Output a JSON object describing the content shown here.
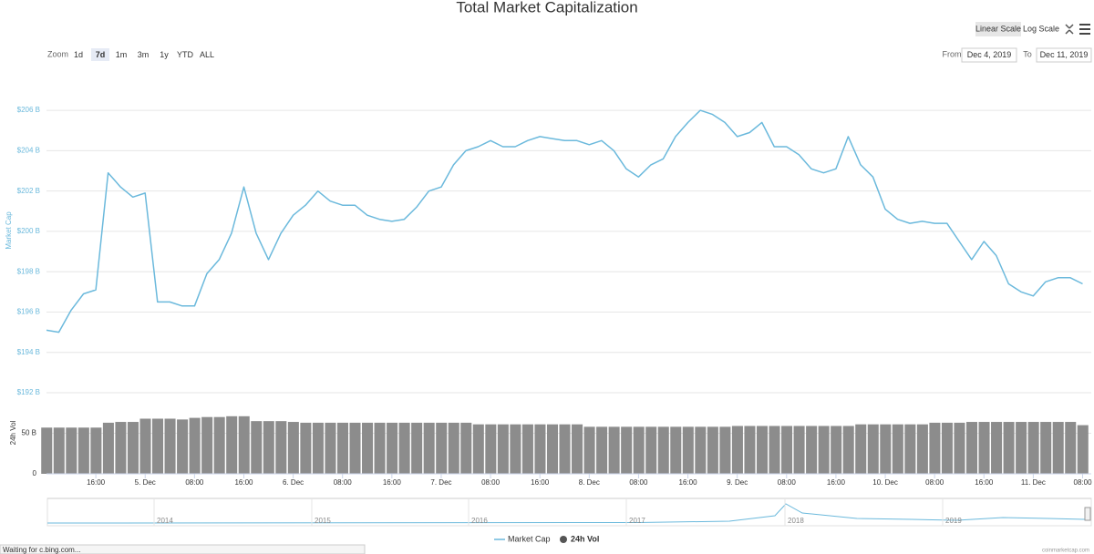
{
  "chart_data": [
    {
      "type": "line",
      "title": "Total Market Capitalization",
      "y_label": "Market Cap",
      "categories": [
        null,
        null,
        null,
        null,
        "16:00",
        null,
        null,
        null,
        "5. Dec",
        null,
        null,
        null,
        "08:00",
        null,
        null,
        null,
        "16:00",
        null,
        null,
        null,
        "6. Dec",
        null,
        null,
        null,
        "08:00",
        null,
        null,
        null,
        "16:00",
        null,
        null,
        null,
        "7. Dec",
        null,
        null,
        null,
        "08:00",
        null,
        null,
        null,
        "16:00",
        null,
        null,
        null,
        "8. Dec",
        null,
        null,
        null,
        "08:00",
        null,
        null,
        null,
        "16:00",
        null,
        null,
        null,
        "9. Dec",
        null,
        null,
        null,
        "08:00",
        null,
        null,
        null,
        "16:00",
        null,
        null,
        null,
        "10. Dec",
        null,
        null,
        null,
        "08:00",
        null,
        null,
        null,
        "16:00",
        null,
        null,
        null,
        "11. Dec",
        null,
        null,
        null,
        "08:00"
      ],
      "series": [
        {
          "name": "Market Cap",
          "color": "#6bb9dc",
          "values": [
            195.1,
            195.0,
            196.1,
            196.9,
            197.1,
            202.9,
            202.2,
            201.7,
            201.9,
            196.5,
            196.5,
            196.3,
            196.3,
            197.9,
            198.6,
            199.9,
            202.2,
            199.9,
            198.6,
            199.9,
            200.8,
            201.3,
            202.0,
            201.5,
            201.3,
            201.3,
            200.8,
            200.6,
            200.5,
            200.6,
            201.2,
            202.0,
            202.2,
            203.3,
            204.0,
            204.2,
            204.5,
            204.2,
            204.2,
            204.5,
            204.7,
            204.6,
            204.5,
            204.5,
            204.3,
            204.5,
            204.0,
            203.1,
            202.7,
            203.3,
            203.6,
            204.7,
            205.4,
            206.0,
            205.8,
            205.4,
            204.7,
            204.9,
            205.4,
            204.2,
            204.2,
            203.8,
            203.1,
            202.9,
            203.1,
            204.7,
            203.3,
            202.7,
            201.1,
            200.6,
            200.4,
            200.5,
            200.4,
            200.4,
            199.5,
            198.6,
            199.5,
            198.8,
            197.4,
            197.0,
            196.8,
            197.5,
            197.7,
            197.7,
            197.4
          ]
        }
      ],
      "ylim": [
        192,
        207
      ],
      "yticks": [
        {
          "value": 192,
          "label": "$192 B"
        },
        {
          "value": 194,
          "label": "$194 B"
        },
        {
          "value": 196,
          "label": "$196 B"
        },
        {
          "value": 198,
          "label": "$198 B"
        },
        {
          "value": 200,
          "label": "$200 B"
        },
        {
          "value": 202,
          "label": "$202 B"
        },
        {
          "value": 204,
          "label": "$204 B"
        },
        {
          "value": 206,
          "label": "$206 B"
        }
      ],
      "grid": true
    },
    {
      "type": "bar",
      "y_label": "24h Vol",
      "series": [
        {
          "name": "24h Vol",
          "color": "#8c8c8c",
          "values": [
            57,
            57,
            57,
            57,
            57,
            63,
            64,
            64,
            68,
            68,
            68,
            67,
            69,
            70,
            70,
            71,
            71,
            65,
            65,
            65,
            64,
            63,
            63,
            63,
            63,
            63,
            63,
            63,
            63,
            63,
            63,
            63,
            63,
            63,
            63,
            61,
            61,
            61,
            61,
            61,
            61,
            61,
            61,
            61,
            58,
            58,
            58,
            58,
            58,
            58,
            58,
            58,
            58,
            58,
            58,
            58,
            59,
            59,
            59,
            59,
            59,
            59,
            59,
            59,
            59,
            59,
            61,
            61,
            61,
            61,
            61,
            61,
            63,
            63,
            63,
            64,
            64,
            64,
            64,
            64,
            64,
            64,
            64,
            64,
            60
          ]
        }
      ],
      "ylim": [
        0,
        100
      ],
      "yticks": [
        0,
        {
          "value": 50,
          "label": "50 B"
        }
      ]
    }
  ],
  "zoom": {
    "label": "Zoom",
    "buttons": [
      "1d",
      "7d",
      "1m",
      "3m",
      "1y",
      "YTD",
      "ALL"
    ],
    "active": 1
  },
  "scale": {
    "buttons": [
      "Linear Scale",
      "Log Scale"
    ],
    "active": 0
  },
  "range": {
    "from_label": "From",
    "from": "Dec 4, 2019",
    "to_label": "To",
    "to": "Dec 11, 2019"
  },
  "navigator": {
    "labels": [
      "2014",
      "2015",
      "2016",
      "2017",
      "2018",
      "2019"
    ]
  },
  "status": "Waiting for c.bing.com...",
  "credit": "coinmarketcap.com"
}
